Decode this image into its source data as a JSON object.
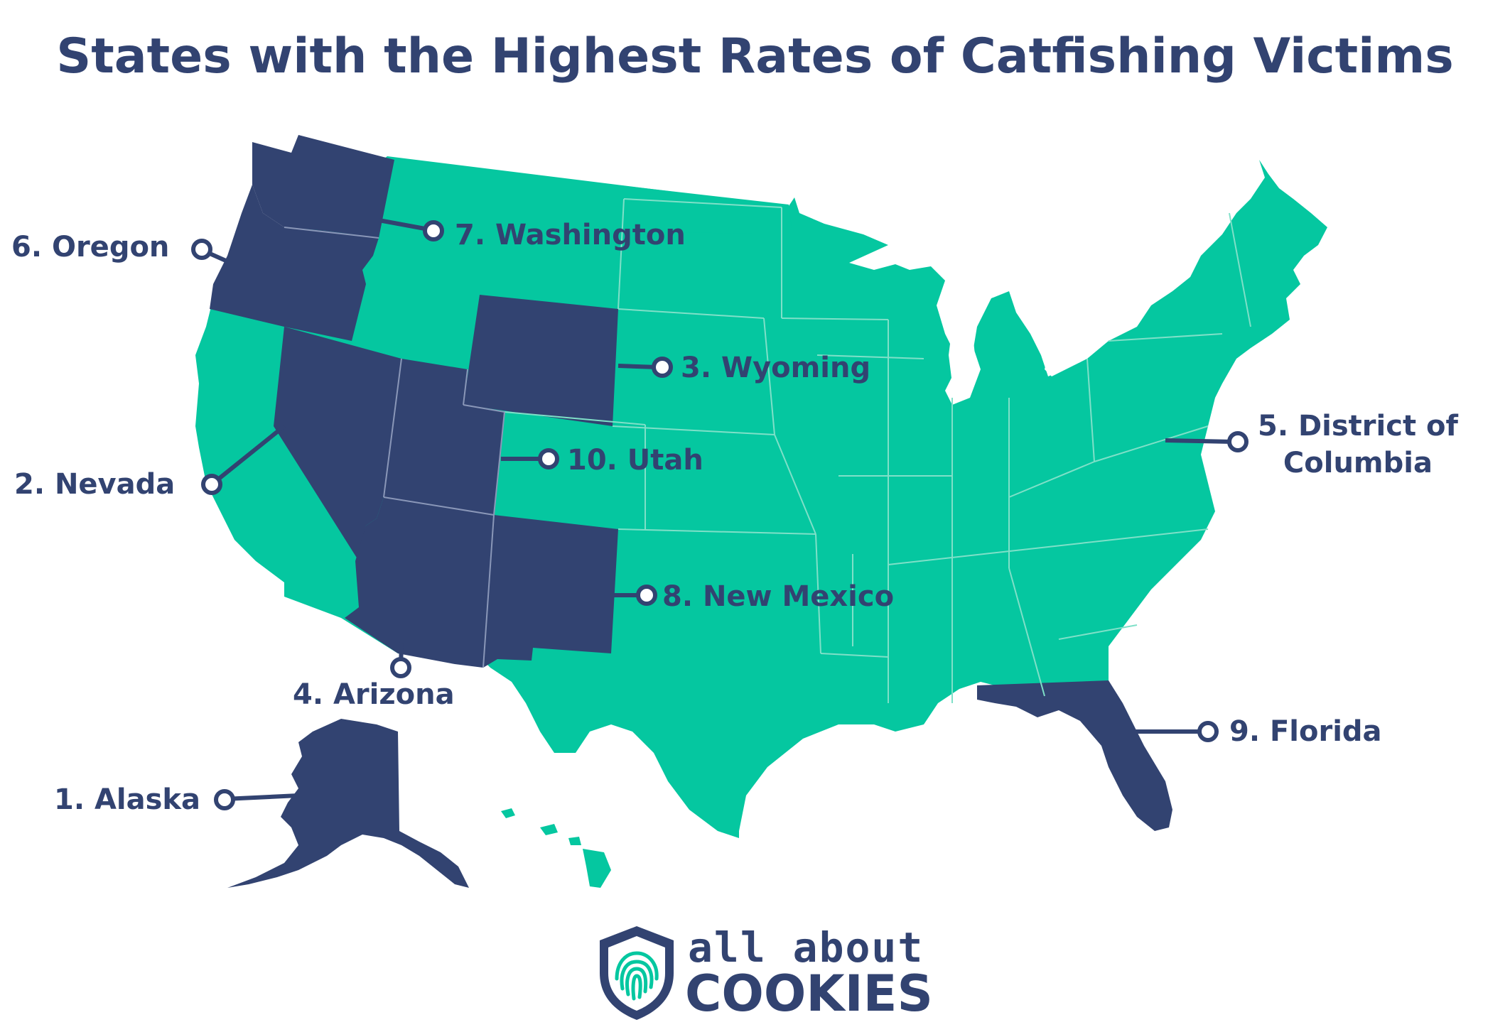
{
  "title": "States with the Highest Rates of Catfishing Victims",
  "colors": {
    "highlight": "#324371",
    "other": "#05c7a0",
    "border": "#7fe0c8",
    "text": "#324371",
    "background": "#ffffff"
  },
  "rankings": [
    {
      "rank": "1.",
      "state": "Alaska",
      "label": "1. Alaska"
    },
    {
      "rank": "2.",
      "state": "Nevada",
      "label": "2. Nevada"
    },
    {
      "rank": "3.",
      "state": "Wyoming",
      "label": "3. Wyoming"
    },
    {
      "rank": "4.",
      "state": "Arizona",
      "label": "4. Arizona"
    },
    {
      "rank": "5.",
      "state": "District of Columbia",
      "label_line1": "5. District of",
      "label_line2": "Columbia"
    },
    {
      "rank": "6.",
      "state": "Oregon",
      "label": "6. Oregon"
    },
    {
      "rank": "7.",
      "state": "Washington",
      "label": "7. Washington"
    },
    {
      "rank": "8.",
      "state": "New Mexico",
      "label": "8. New Mexico"
    },
    {
      "rank": "9.",
      "state": "Florida",
      "label": "9. Florida"
    },
    {
      "rank": "10.",
      "state": "Utah",
      "label": "10. Utah"
    }
  ],
  "logo": {
    "line1": "all about",
    "line2": "COOKIES",
    "icon": "fingerprint-shield-icon"
  }
}
